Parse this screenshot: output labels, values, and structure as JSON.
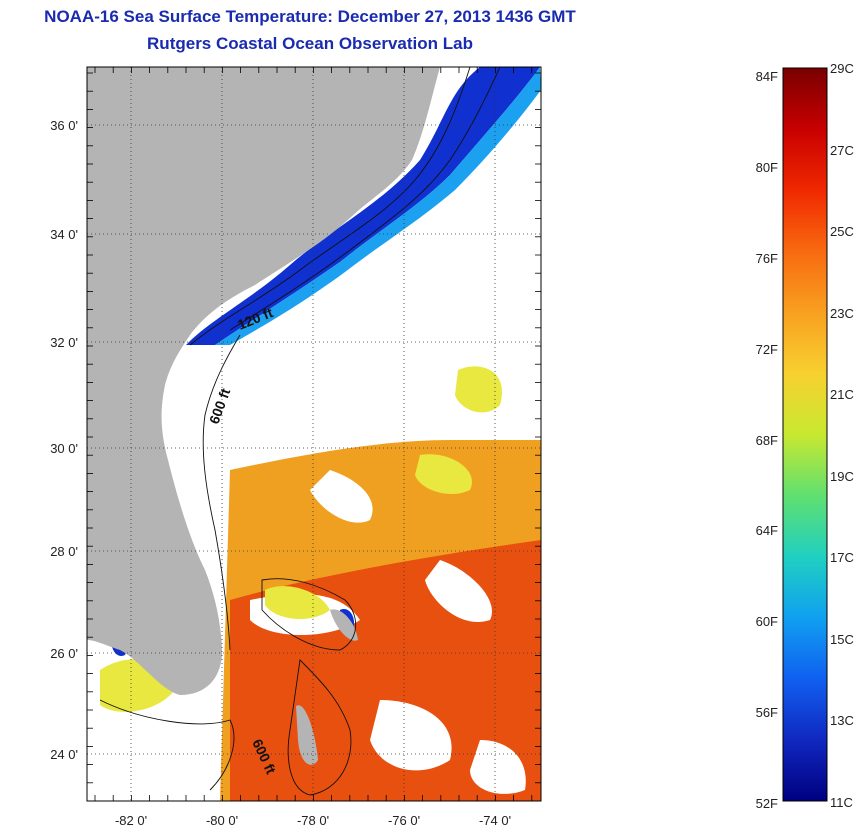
{
  "title": {
    "line1": "NOAA-16 Sea Surface Temperature:  December 27, 2013 1436 GMT",
    "line2": "Rutgers Coastal Ocean Observation Lab"
  },
  "map": {
    "latitude_ticks": [
      "36 0'",
      "34 0'",
      "32 0'",
      "30 0'",
      "28 0'",
      "26 0'",
      "24 0'"
    ],
    "longitude_ticks": [
      "-82 0'",
      "-80 0'",
      "-78 0'",
      "-76 0'",
      "-74 0'"
    ],
    "contour_labels": [
      "120 ft",
      "600 ft",
      "600 ft"
    ],
    "colors": {
      "land": "#b4b4b4",
      "cold": "#1030d0",
      "cool": "#1ca0f0",
      "mild": "#e8e840",
      "warm": "#f0a020",
      "hot": "#e85010"
    }
  },
  "colorbar": {
    "fahrenheit_ticks": [
      "84F",
      "80F",
      "76F",
      "72F",
      "68F",
      "64F",
      "60F",
      "56F",
      "52F"
    ],
    "celsius_ticks": [
      "29C",
      "27C",
      "25C",
      "23C",
      "21C",
      "19C",
      "17C",
      "15C",
      "13C",
      "11C"
    ],
    "range_c": [
      11,
      29
    ],
    "colors_top_to_bottom": [
      "#7a0000",
      "#c80000",
      "#f02800",
      "#f86a10",
      "#f8a020",
      "#f8d030",
      "#c8e830",
      "#60e070",
      "#20d0c0",
      "#10a0f0",
      "#1060f0",
      "#1028c0",
      "#000080"
    ]
  }
}
